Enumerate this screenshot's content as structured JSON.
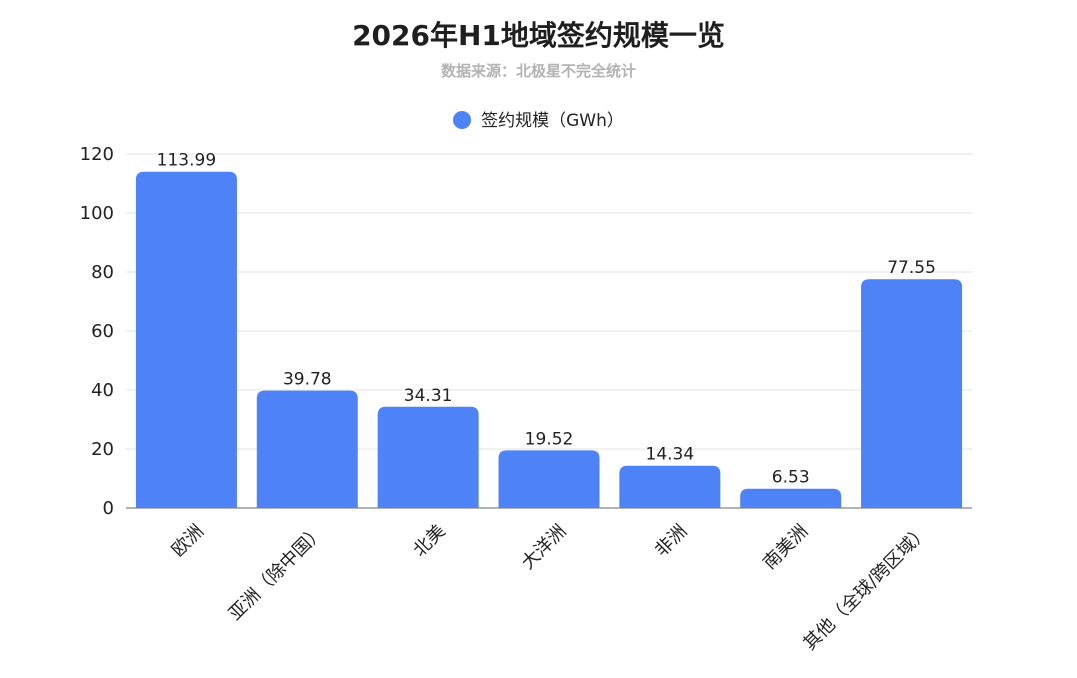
{
  "chart_data": {
    "type": "bar",
    "title": "2026年H1地域签约规模一览",
    "subtitle": "数据来源：北极星不完全统计",
    "categories": [
      "欧洲",
      "亚洲（除中国）",
      "北美",
      "大洋洲",
      "非洲",
      "南美洲",
      "其他（全球/跨区域）"
    ],
    "series": [
      {
        "name": "签约规模（GWh）",
        "values": [
          113.99,
          39.78,
          34.31,
          19.52,
          14.34,
          6.53,
          77.55
        ]
      }
    ],
    "data_labels": [
      "113.99",
      "39.78",
      "34.31",
      "19.52",
      "14.34",
      "6.53",
      "77.55"
    ],
    "ylim": [
      0,
      120
    ],
    "yticks": [
      0,
      20,
      40,
      60,
      80,
      100,
      120
    ],
    "grid": true,
    "legend_position": "top-center",
    "colors": {
      "bar": "#4e83f7",
      "grid": "#e3e3e3",
      "axis": "#9a9a9a"
    }
  }
}
